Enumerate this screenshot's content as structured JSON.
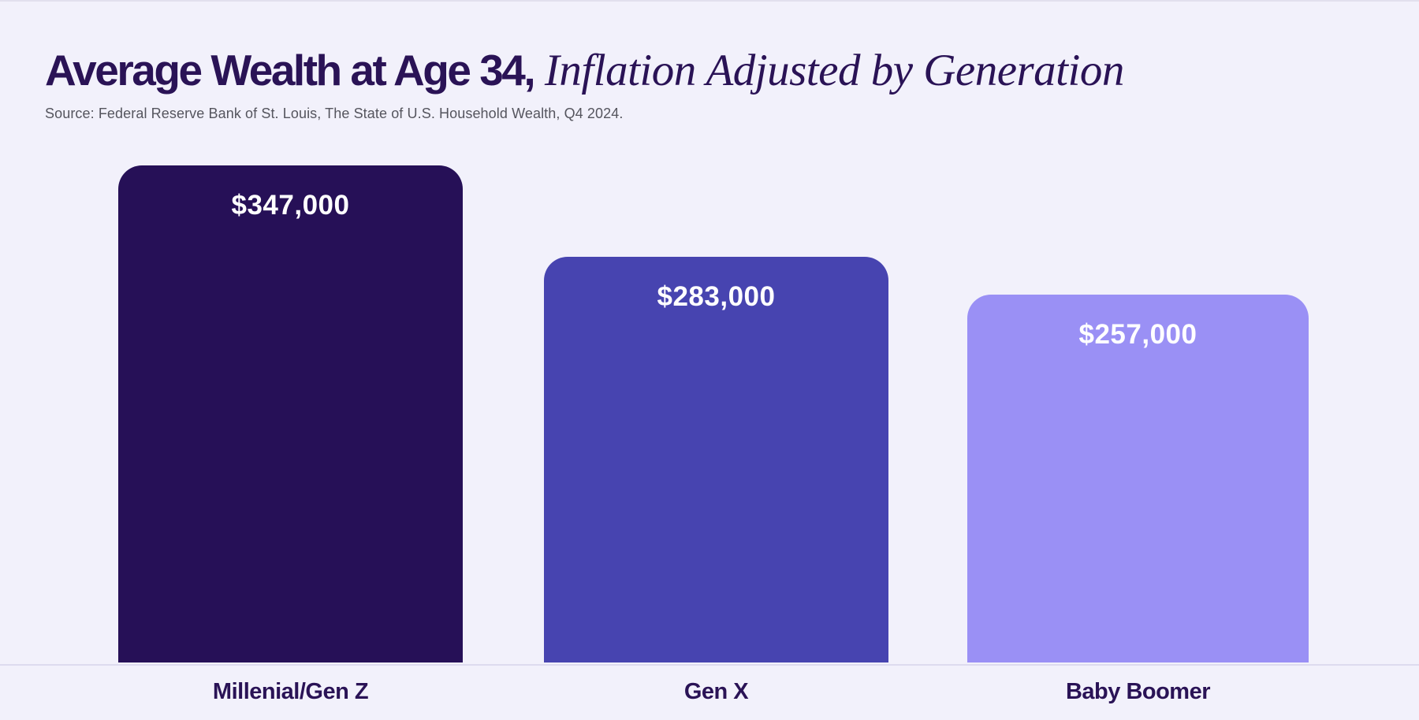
{
  "header": {
    "title_bold": "Average Wealth at Age 34,",
    "title_italic": " Inflation Adjusted by Generation",
    "source": "Source: Federal Reserve Bank of St. Louis, The State of U.S. Household Wealth, Q4 2024."
  },
  "chart_data": {
    "type": "bar",
    "title": "Average Wealth at Age 34, Inflation Adjusted by Generation",
    "categories": [
      "Millenial/Gen Z",
      "Gen X",
      "Baby Boomer"
    ],
    "values": [
      347000,
      283000,
      257000
    ],
    "value_labels": [
      "$347,000",
      "$283,000",
      "$257,000"
    ],
    "xlabel": "",
    "ylabel": "",
    "ylim": [
      0,
      347000
    ],
    "grid": false,
    "legend": false,
    "bar_colors": [
      "#261057",
      "#4744b0",
      "#9a90f5"
    ],
    "value_label_color": "#ffffff",
    "background_color": "#f2f1fb",
    "title_color": "#2a1356",
    "source_color": "#55555e"
  }
}
